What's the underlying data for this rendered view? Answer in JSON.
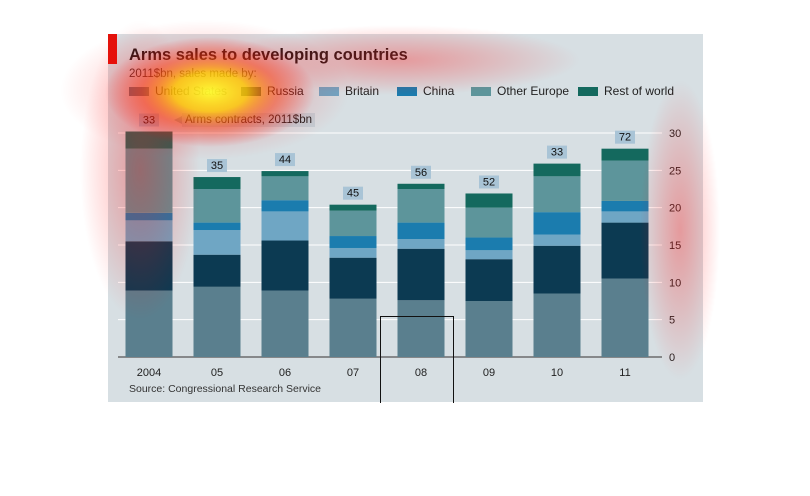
{
  "title": "Arms sales to developing countries",
  "subtitle": "2011$bn, sales made by:",
  "source": "Source: Congressional Research Service",
  "annotation": "Arms contracts, 2011$bn",
  "legend": [
    {
      "name": "United States",
      "color": "#5a7f8e"
    },
    {
      "name": "Russia",
      "color": "#0c3a52"
    },
    {
      "name": "Britain",
      "color": "#6fa6c4"
    },
    {
      "name": "China",
      "color": "#1b7cae"
    },
    {
      "name": "Other Europe",
      "color": "#5d959b"
    },
    {
      "name": "Rest of world",
      "color": "#14695e"
    }
  ],
  "chart_data": {
    "type": "bar",
    "stacked": true,
    "categories": [
      "2004",
      "05",
      "06",
      "07",
      "08",
      "09",
      "10",
      "11"
    ],
    "ylim": [
      0,
      30
    ],
    "yticks": [
      0,
      5,
      10,
      15,
      20,
      25,
      30
    ],
    "y_axis_side": "right",
    "grid": true,
    "series": [
      {
        "name": "United States",
        "color": "#5a7f8e",
        "values": [
          8.9,
          9.4,
          8.9,
          7.8,
          7.6,
          7.5,
          8.5,
          10.5
        ]
      },
      {
        "name": "Russia",
        "color": "#0c3a52",
        "values": [
          6.6,
          4.3,
          6.7,
          5.5,
          6.9,
          5.6,
          6.4,
          7.5
        ]
      },
      {
        "name": "Britain",
        "color": "#6fa6c4",
        "values": [
          2.8,
          3.3,
          3.9,
          1.3,
          1.3,
          1.2,
          1.5,
          1.5
        ]
      },
      {
        "name": "China",
        "color": "#1b7cae",
        "values": [
          1.0,
          1.0,
          1.5,
          1.6,
          2.2,
          1.7,
          3.0,
          1.4
        ]
      },
      {
        "name": "Other Europe",
        "color": "#5d959b",
        "values": [
          8.6,
          4.5,
          3.2,
          3.4,
          4.5,
          4.0,
          4.8,
          5.4
        ]
      },
      {
        "name": "Rest of world",
        "color": "#14695e",
        "values": [
          2.3,
          1.6,
          0.7,
          0.8,
          0.7,
          1.9,
          1.7,
          1.6
        ]
      }
    ],
    "totals_label": [
      "33",
      "35",
      "44",
      "45",
      "56",
      "52",
      "33",
      "72"
    ]
  }
}
